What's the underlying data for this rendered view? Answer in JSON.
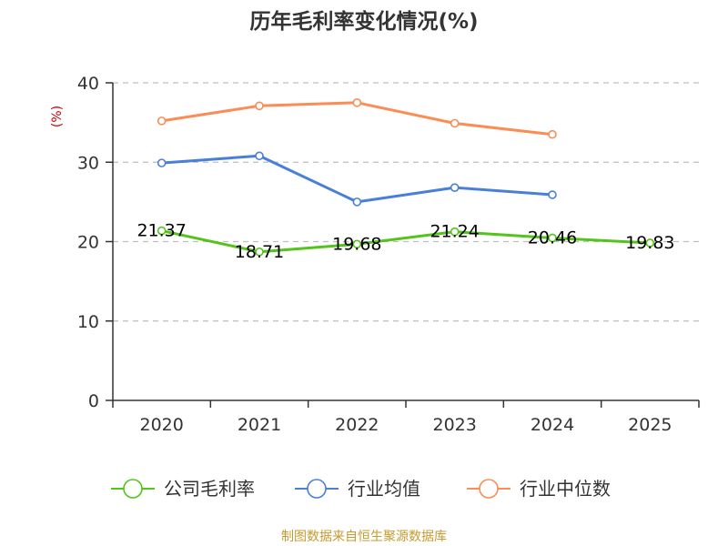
{
  "colors": {
    "company": "#52c41a",
    "industry_avg": "#4a7fd8",
    "industry_median": "#fa8c54",
    "axis": "#333333",
    "grid": "#bfbfbf",
    "ylabel": "#cc0000",
    "source": "#c79a2e"
  },
  "source_text": "制图数据来自恒生聚源数据库",
  "chart_data": {
    "type": "line",
    "title": "历年毛利率变化情况(%)",
    "xlabel": "",
    "ylabel": "(%)",
    "categories": [
      "2020",
      "2021",
      "2022",
      "2023",
      "2024",
      "2025"
    ],
    "ylim": [
      0,
      40
    ],
    "yticks": [
      0,
      10,
      20,
      30,
      40
    ],
    "grid": true,
    "legend_position": "bottom",
    "series": [
      {
        "key": "company",
        "name": "公司毛利率",
        "values": [
          21.37,
          18.71,
          19.68,
          21.24,
          20.46,
          19.83
        ],
        "labels": [
          "21.37",
          "18.71",
          "19.68",
          "21.24",
          "20.46",
          "19.83"
        ],
        "show_labels": true
      },
      {
        "key": "industry_avg",
        "name": "行业均值",
        "values": [
          29.9,
          30.8,
          25.0,
          26.8,
          25.9,
          null
        ],
        "show_labels": false
      },
      {
        "key": "industry_median",
        "name": "行业中位数",
        "values": [
          35.2,
          37.1,
          37.5,
          34.9,
          33.5,
          null
        ],
        "show_labels": false
      }
    ]
  }
}
